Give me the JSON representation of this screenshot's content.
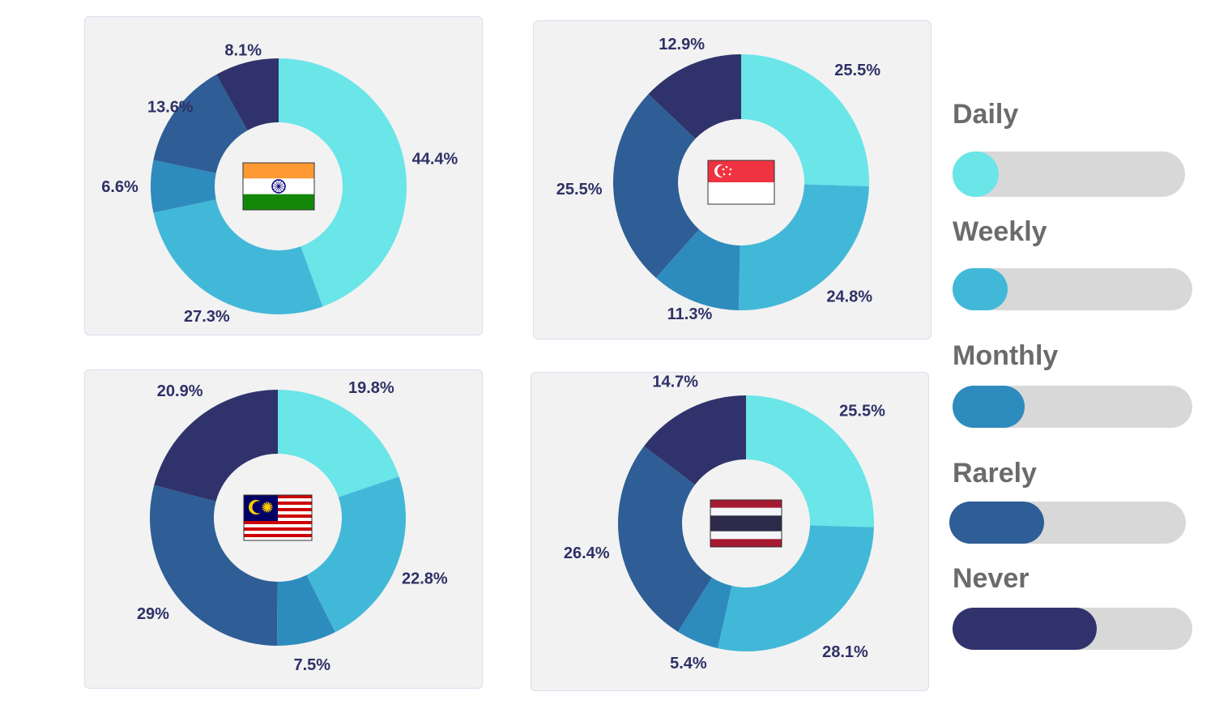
{
  "colors": {
    "Daily": "#6ae5e8",
    "Weekly": "#42b8d8",
    "Monthly": "#2e8bbd",
    "Rarely": "#2e5e95",
    "Never": "#30336b"
  },
  "legend": {
    "items": [
      {
        "label": "Daily",
        "level": 0.2
      },
      {
        "label": "Weekly",
        "level": 0.23
      },
      {
        "label": "Monthly",
        "level": 0.3
      },
      {
        "label": "Rarely",
        "level": 0.4
      },
      {
        "label": "Never",
        "level": 0.6
      }
    ]
  },
  "chart_data": [
    {
      "type": "pie",
      "flag": "india-flag",
      "categories": [
        "Daily",
        "Weekly",
        "Monthly",
        "Rarely",
        "Never"
      ],
      "values": [
        44.4,
        27.3,
        6.6,
        13.6,
        8.1
      ],
      "labels": [
        "44.4%",
        "27.3%",
        "6.6%",
        "13.6%",
        "8.1%"
      ]
    },
    {
      "type": "pie",
      "flag": "singapore-flag",
      "categories": [
        "Daily",
        "Weekly",
        "Monthly",
        "Rarely",
        "Never"
      ],
      "values": [
        25.5,
        24.8,
        11.3,
        25.5,
        12.9
      ],
      "labels": [
        "25.5%",
        "24.8%",
        "11.3%",
        "25.5%",
        "12.9%"
      ]
    },
    {
      "type": "pie",
      "flag": "malaysia-flag",
      "categories": [
        "Daily",
        "Weekly",
        "Monthly",
        "Rarely",
        "Never"
      ],
      "values": [
        19.8,
        22.8,
        7.5,
        29,
        20.9
      ],
      "labels": [
        "19.8%",
        "22.8%",
        "7.5%",
        "29%",
        "20.9%"
      ]
    },
    {
      "type": "pie",
      "flag": "thailand-flag",
      "categories": [
        "Daily",
        "Weekly",
        "Monthly",
        "Rarely",
        "Never"
      ],
      "values": [
        25.5,
        28.1,
        5.4,
        26.4,
        14.7
      ],
      "labels": [
        "25.5%",
        "28.1%",
        "5.4%",
        "26.4%",
        "14.7%"
      ]
    }
  ]
}
